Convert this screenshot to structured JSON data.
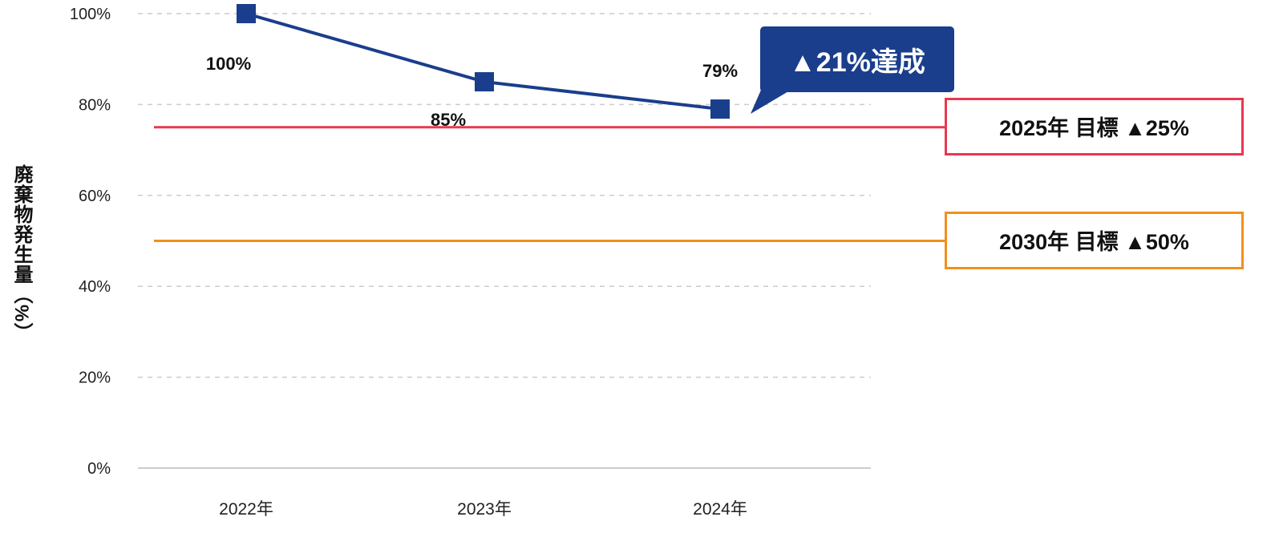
{
  "chart_data": {
    "type": "line",
    "ylabel": "廃棄物発生量（%）",
    "ylim": [
      0,
      100
    ],
    "yticks": [
      "0%",
      "20%",
      "40%",
      "60%",
      "80%",
      "100%"
    ],
    "ytick_values": [
      0,
      20,
      40,
      60,
      80,
      100
    ],
    "categories": [
      "2022年",
      "2023年",
      "2024年"
    ],
    "series": [
      {
        "name": "廃棄物発生量",
        "values": [
          100,
          85,
          79
        ],
        "labels": [
          "100%",
          "85%",
          "79%"
        ],
        "color": "#1a3e8c"
      }
    ],
    "grid": true,
    "callout": "▲21%達成",
    "targets": [
      {
        "label": "2025年 目標 ▲25%",
        "value": 75,
        "color": "#e8384f"
      },
      {
        "label": "2030年 目標 ▲50%",
        "value": 50,
        "color": "#f0901e"
      }
    ]
  }
}
